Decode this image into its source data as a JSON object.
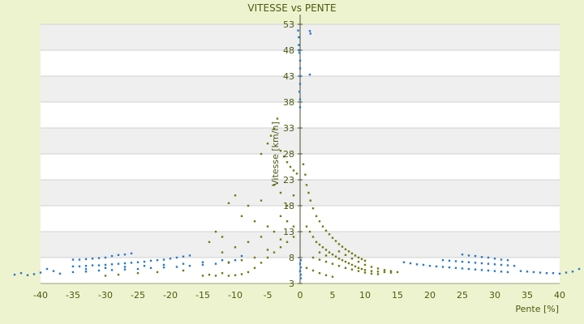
{
  "chart_data": {
    "type": "scatter",
    "title": "VITESSE vs PENTE",
    "xlabel": "Pente [%]",
    "ylabel": "Vitesse [km/h]",
    "xlim": [
      -40,
      40
    ],
    "ylim": [
      3,
      53
    ],
    "x_ticks": [
      "-40",
      "-35",
      "-30",
      "-25",
      "-20",
      "-15",
      "-10",
      "-5",
      "0",
      "5",
      "10",
      "15",
      "20",
      "25",
      "30",
      "35",
      "40"
    ],
    "y_ticks": [
      "3",
      "8",
      "13",
      "18",
      "23",
      "28",
      "33",
      "38",
      "43",
      "48",
      "53"
    ],
    "grid": true,
    "legend": "none",
    "colors": {
      "background": "#eef3cf",
      "plot_band_a": "#ffffff",
      "plot_band_b": "#efefef",
      "series_blue": "#2a78c8",
      "series_olive": "#6f7a12",
      "text": "#4a5a10"
    },
    "series": [
      {
        "color": "#2a78c8",
        "description_visible": false,
        "points": [
          [
            -44,
            4.7
          ],
          [
            -43,
            5.0
          ],
          [
            -42,
            4.6
          ],
          [
            -41,
            4.8
          ],
          [
            -40,
            5.1
          ],
          [
            -39,
            5.8
          ],
          [
            -38,
            5.4
          ],
          [
            -37,
            4.9
          ],
          [
            -35,
            7.6
          ],
          [
            -34,
            7.6
          ],
          [
            -33,
            7.7
          ],
          [
            -32,
            7.8
          ],
          [
            -31,
            7.9
          ],
          [
            -30,
            8.0
          ],
          [
            -29,
            8.3
          ],
          [
            -28,
            8.5
          ],
          [
            -27,
            8.6
          ],
          [
            -26,
            8.8
          ],
          [
            -35,
            6.3
          ],
          [
            -34,
            6.3
          ],
          [
            -33,
            6.4
          ],
          [
            -32,
            6.5
          ],
          [
            -31,
            6.5
          ],
          [
            -30,
            6.6
          ],
          [
            -29,
            6.7
          ],
          [
            -28,
            6.8
          ],
          [
            -27,
            6.9
          ],
          [
            -26,
            7.0
          ],
          [
            -25,
            7.1
          ],
          [
            -24,
            7.2
          ],
          [
            -23,
            7.4
          ],
          [
            -22,
            7.5
          ],
          [
            -21,
            7.6
          ],
          [
            -20,
            7.8
          ],
          [
            -19,
            8.0
          ],
          [
            -18,
            8.2
          ],
          [
            -17,
            8.4
          ],
          [
            -35,
            5.2
          ],
          [
            -33,
            5.3
          ],
          [
            -31,
            5.5
          ],
          [
            -29,
            5.6
          ],
          [
            -27,
            5.7
          ],
          [
            -25,
            5.8
          ],
          [
            -23,
            6.0
          ],
          [
            -21,
            6.1
          ],
          [
            -19,
            6.2
          ],
          [
            -17,
            6.4
          ],
          [
            -15,
            6.6
          ],
          [
            -13,
            6.8
          ],
          [
            -11,
            7.1
          ],
          [
            -10,
            7.5
          ],
          [
            -9,
            8.3
          ],
          [
            -33,
            5.8
          ],
          [
            -30,
            6.0
          ],
          [
            -27,
            6.2
          ],
          [
            -24,
            6.4
          ],
          [
            -21,
            6.6
          ],
          [
            -18,
            6.8
          ],
          [
            -15,
            7.1
          ],
          [
            -12,
            7.5
          ],
          [
            -0.3,
            51.8
          ],
          [
            -0.2,
            50.5
          ],
          [
            -0.2,
            49.0
          ],
          [
            -0.1,
            47.5
          ],
          [
            0,
            46.0
          ],
          [
            0,
            44.5
          ],
          [
            0,
            43.0
          ],
          [
            0,
            41.5
          ],
          [
            -0.1,
            40.0
          ],
          [
            0,
            38.5
          ],
          [
            0,
            37.0
          ],
          [
            -0.2,
            48.0
          ],
          [
            0.1,
            4.0
          ],
          [
            0.1,
            4.7
          ],
          [
            0,
            5.4
          ],
          [
            0.1,
            6.1
          ],
          [
            0,
            6.8
          ],
          [
            0.1,
            7.5
          ],
          [
            1.5,
            51.7
          ],
          [
            1.6,
            51.2
          ],
          [
            1.5,
            43.3
          ],
          [
            16,
            7.1
          ],
          [
            17,
            6.9
          ],
          [
            18,
            6.7
          ],
          [
            19,
            6.6
          ],
          [
            20,
            6.4
          ],
          [
            21,
            6.3
          ],
          [
            22,
            6.2
          ],
          [
            23,
            6.1
          ],
          [
            24,
            6.0
          ],
          [
            25,
            5.9
          ],
          [
            26,
            5.8
          ],
          [
            27,
            5.7
          ],
          [
            28,
            5.6
          ],
          [
            29,
            5.5
          ],
          [
            30,
            5.4
          ],
          [
            31,
            5.3
          ],
          [
            32,
            5.2
          ],
          [
            22,
            7.5
          ],
          [
            23,
            7.4
          ],
          [
            24,
            7.3
          ],
          [
            25,
            7.2
          ],
          [
            26,
            7.1
          ],
          [
            27,
            7.0
          ],
          [
            28,
            6.9
          ],
          [
            29,
            6.8
          ],
          [
            30,
            6.7
          ],
          [
            31,
            6.6
          ],
          [
            32,
            6.5
          ],
          [
            33,
            6.4
          ],
          [
            25,
            8.6
          ],
          [
            26,
            8.4
          ],
          [
            27,
            8.3
          ],
          [
            28,
            8.1
          ],
          [
            29,
            8.0
          ],
          [
            30,
            7.8
          ],
          [
            31,
            7.6
          ],
          [
            32,
            7.5
          ],
          [
            34,
            5.4
          ],
          [
            35,
            5.3
          ],
          [
            36,
            5.2
          ],
          [
            37,
            5.1
          ],
          [
            38,
            5.0
          ],
          [
            39,
            5.0
          ],
          [
            40,
            4.9
          ],
          [
            41,
            5.1
          ],
          [
            42,
            5.3
          ],
          [
            43,
            5.8
          ]
        ]
      },
      {
        "color": "#6f7a12",
        "description_visible": false,
        "points": [
          [
            -5,
            30
          ],
          [
            -4.5,
            31.5
          ],
          [
            -4,
            32.8
          ],
          [
            -6,
            28
          ],
          [
            -3.5,
            34.8
          ],
          [
            -3,
            28.6
          ],
          [
            -2.5,
            27.5
          ],
          [
            -2,
            26.4
          ],
          [
            -1.5,
            25.5
          ],
          [
            -1,
            24.8
          ],
          [
            -0.5,
            24.2
          ],
          [
            -4,
            22
          ],
          [
            -3,
            20.5
          ],
          [
            -6,
            19
          ],
          [
            -8,
            18
          ],
          [
            -10,
            20
          ],
          [
            -11,
            18.5
          ],
          [
            -9,
            16
          ],
          [
            -7,
            15
          ],
          [
            -5,
            14
          ],
          [
            -3,
            16
          ],
          [
            -2,
            18
          ],
          [
            -1,
            20
          ],
          [
            -12,
            12
          ],
          [
            -13,
            13
          ],
          [
            -14,
            11
          ],
          [
            -12,
            9
          ],
          [
            -10,
            10
          ],
          [
            -8,
            11
          ],
          [
            -6,
            12
          ],
          [
            -4,
            13
          ],
          [
            -2,
            15
          ],
          [
            -12,
            5
          ],
          [
            -11,
            4.5
          ],
          [
            -10,
            4.6
          ],
          [
            -9,
            4.8
          ],
          [
            -8,
            5.2
          ],
          [
            -7,
            6
          ],
          [
            -6,
            7
          ],
          [
            -5,
            8
          ],
          [
            -4,
            9
          ],
          [
            -3,
            10
          ],
          [
            -2,
            11
          ],
          [
            -1,
            12
          ],
          [
            -15,
            4.5
          ],
          [
            -14,
            4.7
          ],
          [
            -13,
            4.5
          ],
          [
            -11,
            7
          ],
          [
            -9,
            7.5
          ],
          [
            -7,
            8
          ],
          [
            -5,
            9.5
          ],
          [
            -3,
            11.5
          ],
          [
            -1,
            14
          ],
          [
            -30,
            4.5
          ],
          [
            -28,
            4.7
          ],
          [
            -25,
            5.0
          ],
          [
            -22,
            5.2
          ],
          [
            -18,
            5.5
          ],
          [
            0.5,
            26
          ],
          [
            0.8,
            24
          ],
          [
            1,
            22
          ],
          [
            1.3,
            20.5
          ],
          [
            1.6,
            19
          ],
          [
            2,
            17.5
          ],
          [
            2.5,
            16
          ],
          [
            3,
            15
          ],
          [
            3.5,
            14
          ],
          [
            4,
            13.2
          ],
          [
            4.5,
            12.5
          ],
          [
            5,
            11.8
          ],
          [
            5.5,
            11.2
          ],
          [
            6,
            10.6
          ],
          [
            6.5,
            10.1
          ],
          [
            7,
            9.6
          ],
          [
            7.5,
            9.2
          ],
          [
            8,
            8.8
          ],
          [
            8.5,
            8.4
          ],
          [
            9,
            8.0
          ],
          [
            9.5,
            7.7
          ],
          [
            10,
            7.4
          ],
          [
            1,
            14
          ],
          [
            1.5,
            13
          ],
          [
            2,
            12
          ],
          [
            2.5,
            11
          ],
          [
            3,
            10.5
          ],
          [
            3.5,
            10
          ],
          [
            4,
            9.5
          ],
          [
            4.5,
            9
          ],
          [
            5,
            8.6
          ],
          [
            5.5,
            8.2
          ],
          [
            6,
            7.8
          ],
          [
            6.5,
            7.5
          ],
          [
            7,
            7.2
          ],
          [
            7.5,
            6.9
          ],
          [
            8,
            6.6
          ],
          [
            8.5,
            6.3
          ],
          [
            9,
            6.0
          ],
          [
            9.5,
            5.8
          ],
          [
            10,
            5.6
          ],
          [
            11,
            5.4
          ],
          [
            12,
            5.3
          ],
          [
            13,
            5.2
          ],
          [
            14,
            5.1
          ],
          [
            2,
            8
          ],
          [
            3,
            7.6
          ],
          [
            4,
            7.2
          ],
          [
            5,
            6.8
          ],
          [
            6,
            6.4
          ],
          [
            7,
            6.0
          ],
          [
            8,
            5.7
          ],
          [
            9,
            5.4
          ],
          [
            10,
            5.1
          ],
          [
            11,
            4.9
          ],
          [
            12,
            4.8
          ],
          [
            1,
            6
          ],
          [
            2,
            5.5
          ],
          [
            3,
            5.0
          ],
          [
            4,
            4.6
          ],
          [
            5,
            4.3
          ],
          [
            3,
            9
          ],
          [
            4,
            8.4
          ],
          [
            6,
            9.2
          ],
          [
            7,
            8.5
          ],
          [
            8,
            7.8
          ],
          [
            9,
            7.2
          ],
          [
            10,
            6.6
          ],
          [
            11,
            6.2
          ],
          [
            12,
            5.9
          ],
          [
            13,
            5.6
          ],
          [
            14,
            5.4
          ],
          [
            15,
            5.2
          ]
        ]
      }
    ]
  }
}
